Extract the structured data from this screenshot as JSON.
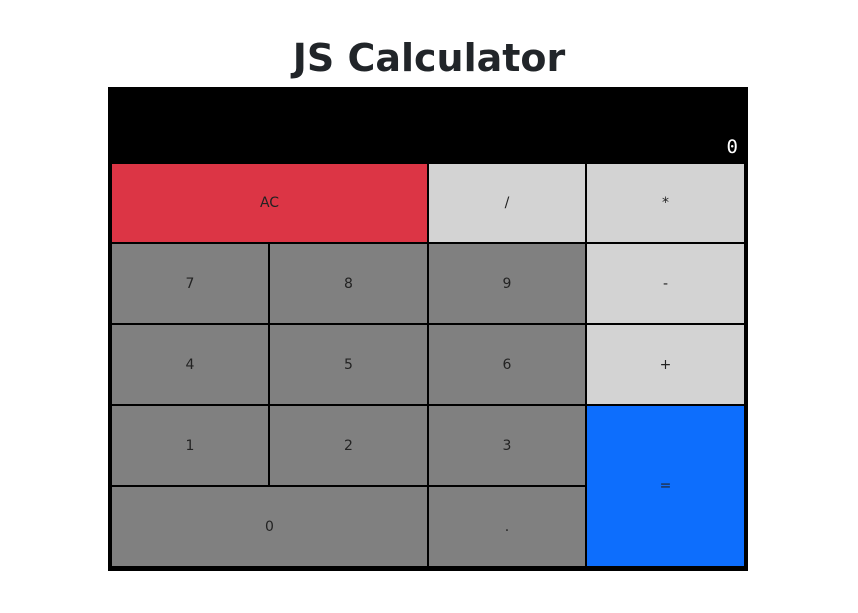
{
  "page": {
    "title": "JS Calculator"
  },
  "display": {
    "value": "0"
  },
  "keys": {
    "clear": "AC",
    "divide": "/",
    "multiply": "*",
    "seven": "7",
    "eight": "8",
    "nine": "9",
    "subtract": "-",
    "four": "4",
    "five": "5",
    "six": "6",
    "add": "+",
    "one": "1",
    "two": "2",
    "three": "3",
    "equals": "=",
    "zero": "0",
    "decimal": "."
  },
  "colors": {
    "clear": "#dc3545",
    "operator": "#d3d3d3",
    "number": "#808080",
    "equals": "#0d6efd",
    "display_bg": "#000000",
    "display_text": "#ffffff"
  }
}
